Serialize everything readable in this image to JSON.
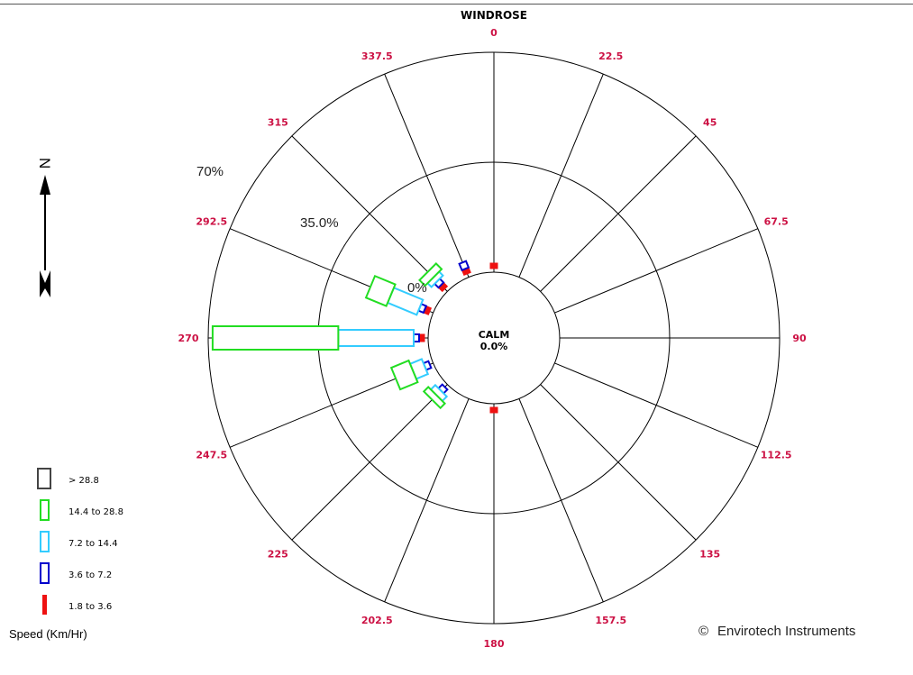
{
  "chart_data": {
    "type": "windrose",
    "title": "WINDROSE",
    "calm_label": "CALM",
    "calm_value": "0.0%",
    "directions": [
      "0",
      "22.5",
      "45",
      "67.5",
      "90",
      "112.5",
      "135",
      "157.5",
      "180",
      "202.5",
      "225",
      "247.5",
      "270",
      "292.5",
      "315",
      "337.5"
    ],
    "ring_labels": [
      "0%",
      "35.0%",
      "70%"
    ],
    "radial_max_percent": 70,
    "speed_bins": [
      {
        "label": "1.8 to 3.6",
        "color": "#ee1111"
      },
      {
        "label": "3.6 to 7.2",
        "color": "#0000cc"
      },
      {
        "label": "7.2 to 14.4",
        "color": "#33ccff"
      },
      {
        "label": "14.4 to 28.8",
        "color": "#22dd22"
      },
      {
        "label": "> 28.8",
        "color": "#444444"
      }
    ],
    "series": [
      {
        "name": "1.8 to 3.6",
        "values": [
          1.2,
          0,
          0,
          0,
          0,
          0,
          0,
          0,
          1.2,
          0,
          0,
          0,
          1.0,
          0.8,
          0.8,
          0.8
        ]
      },
      {
        "name": "3.6 to 7.2",
        "values": [
          0,
          0,
          0,
          0,
          0,
          0,
          0,
          0,
          0,
          0,
          0.8,
          0.8,
          1.0,
          1.6,
          0.8,
          2.2
        ]
      },
      {
        "name": "7.2 to 14.4",
        "values": [
          0,
          0,
          0,
          0,
          0,
          0,
          0,
          0,
          0,
          0,
          2.0,
          4.0,
          24.0,
          10.0,
          1.5,
          0
        ]
      },
      {
        "name": "14.4 to 28.8",
        "values": [
          0,
          0,
          0,
          0,
          0,
          0,
          0,
          0,
          0,
          0,
          2.0,
          6.0,
          40.0,
          7.0,
          2.5,
          0
        ]
      },
      {
        "name": "> 28.8",
        "values": [
          0,
          0,
          0,
          0,
          0,
          0,
          0,
          0,
          0,
          0,
          0,
          0,
          0,
          0,
          0,
          0
        ]
      }
    ]
  },
  "legend": {
    "unit_label": "Speed (Km/Hr)"
  },
  "north_label": "N",
  "copyright": {
    "symbol": "©",
    "text": "Envirotech Instruments"
  }
}
